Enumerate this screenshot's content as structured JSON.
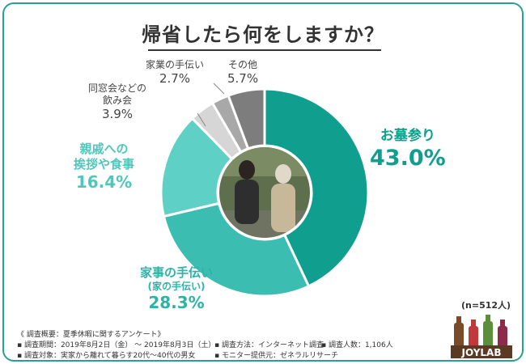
{
  "chart_data": {
    "type": "pie",
    "style": "donut",
    "title": "帰省したら何をしますか？",
    "sample_note": "(n=512人)",
    "slices": [
      {
        "label": "お墓参り",
        "value": 43.0,
        "value_text": "43.0%",
        "color": "#109e8e"
      },
      {
        "label": "家事の手伝い",
        "sublabel": "(家の手伝い)",
        "value": 28.3,
        "value_text": "28.3%",
        "color": "#3cbdb1"
      },
      {
        "label": "親戚への挨拶や食事",
        "value": 16.4,
        "value_text": "16.4%",
        "color": "#5ed0c6"
      },
      {
        "label": "同窓会などの飲み会",
        "value": 3.9,
        "value_text": "3.9%",
        "color": "#d6d6d6"
      },
      {
        "label": "家業の手伝い",
        "value": 2.7,
        "value_text": "2.7%",
        "color": "#a8a8a8"
      },
      {
        "label": "その他",
        "value": 5.7,
        "value_text": "5.7%",
        "color": "#7d7d7d"
      }
    ]
  },
  "labels": {
    "s0_name": "お墓参り",
    "s0_pct": "43.0%",
    "s1_name": "家事の手伝い",
    "s1_sub": "(家の手伝い)",
    "s1_pct": "28.3%",
    "s2_line1": "親戚への",
    "s2_line2": "挨拶や食事",
    "s2_pct": "16.4%",
    "s3_line1": "同窓会などの",
    "s3_line2": "飲み会",
    "s3_pct": "3.9%",
    "s4_name": "家業の手伝い",
    "s4_pct": "2.7%",
    "s5_name": "その他",
    "s5_pct": "5.7%"
  },
  "survey": {
    "heading": "《 調査概要：夏季休暇に関するアンケート》",
    "period": "▪ 調査期間：2019年8月2日（金） ～ 2019年8月3日（土）",
    "method": "▪ 調査方法：インターネット調査",
    "count": "▪ 調査人数：1,106人",
    "target": "▪ 調査対象：実家から離れて暮らす20代～40代の男女",
    "provider": "▪ モニター提供元：ゼネラルリサーチ"
  },
  "logo_text": "JOYLAB"
}
